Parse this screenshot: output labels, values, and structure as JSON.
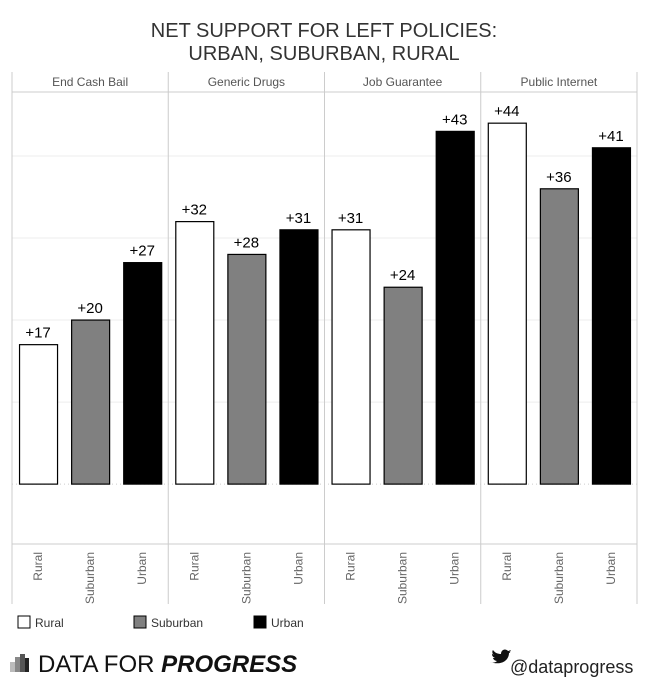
{
  "chart_data": {
    "type": "bar",
    "title": "NET SUPPORT FOR LEFT POLICIES:",
    "subtitle": "URBAN, SUBURBAN, RURAL",
    "facets": [
      "End Cash Bail",
      "Generic Drugs",
      "Job Guarantee",
      "Public Internet"
    ],
    "categories": [
      "Rural",
      "Suburban",
      "Urban"
    ],
    "values": [
      [
        17,
        20,
        27
      ],
      [
        32,
        28,
        31
      ],
      [
        31,
        24,
        43
      ],
      [
        44,
        36,
        41
      ]
    ],
    "data_labels": [
      [
        "+17",
        "+20",
        "+27"
      ],
      [
        "+32",
        "+28",
        "+31"
      ],
      [
        "+31",
        "+24",
        "+43"
      ],
      [
        "+44",
        "+36",
        "+41"
      ]
    ],
    "colors": {
      "Rural": "#ffffff",
      "Suburban": "#808080",
      "Urban": "#000000"
    },
    "ylim": [
      -7.3,
      47.8
    ],
    "grid": true,
    "legend": {
      "placement": "bottom-left",
      "entries": [
        "Rural",
        "Suburban",
        "Urban"
      ]
    }
  },
  "footer": {
    "brand_plain": "DATA FOR",
    "brand_bold": "PROGRESS",
    "handle": "@dataprogress",
    "twitter_icon": "twitter-bird-icon",
    "logo_icon": "bar-chart-logo-icon"
  }
}
